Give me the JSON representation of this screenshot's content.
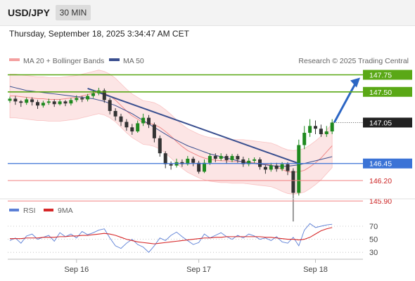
{
  "header": {
    "symbol": "USD/JPY",
    "timeframe": "30 MIN",
    "datetime": "Thursday, September 18, 2025 3:34:47 AM CET"
  },
  "legend": {
    "ma20": "MA 20 + Bollinger Bands",
    "ma50": "MA 50",
    "credit": "Research © 2025 Trading Central"
  },
  "rsi_legend": {
    "rsi": "RSI",
    "ma": "9MA"
  },
  "colors": {
    "up": "#1f8a1f",
    "down": "#333333",
    "ma20": "#f08a8a",
    "ma50": "#3a4f8f",
    "resistance": "#5aa816",
    "support": "#f08080",
    "pivot": "#3b73d6",
    "arrow": "#2c66c4"
  },
  "chart_data": [
    {
      "type": "candlestick",
      "title": "USD/JPY",
      "x_ticks": [
        "Sep 16",
        "Sep 17",
        "Sep 18"
      ],
      "last_price": "147.05",
      "levels": [
        {
          "label": "147.75",
          "kind": "resistance"
        },
        {
          "label": "147.50",
          "kind": "resistance"
        },
        {
          "label": "147.05",
          "kind": "last"
        },
        {
          "label": "146.45",
          "kind": "pivot"
        },
        {
          "label": "146.20",
          "kind": "support"
        },
        {
          "label": "145.90",
          "kind": "support"
        }
      ],
      "trendline": {
        "from": 147.55,
        "to": 146.45
      },
      "series": [
        {
          "name": "MA 20 + Bollinger Bands",
          "values": [
            147.44,
            147.44,
            147.43,
            147.42,
            147.41,
            147.4,
            147.4,
            147.39,
            147.39,
            147.39,
            147.4,
            147.41,
            147.42,
            147.44,
            147.46,
            147.48,
            147.5,
            147.48,
            147.44,
            147.38,
            147.3,
            147.22,
            147.15,
            147.1,
            147.05,
            147.04,
            147.02,
            146.98,
            146.92,
            146.85,
            146.77,
            146.7,
            146.64,
            146.6,
            146.56,
            146.53,
            146.51,
            146.5,
            146.49,
            146.49,
            146.48,
            146.48,
            146.48,
            146.47,
            146.46,
            146.45,
            146.44,
            146.43,
            146.4,
            146.36,
            146.33,
            146.32,
            146.33,
            146.35,
            146.4,
            146.46,
            146.53,
            146.62,
            146.71
          ]
        },
        {
          "name": "MA 50",
          "values": [
            147.58,
            147.56,
            147.54,
            147.52,
            147.51,
            147.5,
            147.49,
            147.48,
            147.47,
            147.46,
            147.45,
            147.44,
            147.43,
            147.42,
            147.41,
            147.4,
            147.38,
            147.36,
            147.33,
            147.3,
            147.26,
            147.22,
            147.18,
            147.13,
            147.08,
            147.03,
            146.98,
            146.93,
            146.88,
            146.83,
            146.79,
            146.75,
            146.71,
            146.68,
            146.65,
            146.62,
            146.59,
            146.57,
            146.55,
            146.53,
            146.51,
            146.49,
            146.47,
            146.46,
            146.45,
            146.44,
            146.43,
            146.42,
            146.41,
            146.41,
            146.41,
            146.42,
            146.43,
            146.45,
            146.47,
            146.49,
            146.51,
            146.53,
            146.55
          ]
        }
      ],
      "candles": [
        [
          147.37,
          147.4,
          147.34,
          147.43
        ],
        [
          147.4,
          147.36,
          147.31,
          147.44
        ],
        [
          147.36,
          147.34,
          147.28,
          147.38
        ],
        [
          147.34,
          147.39,
          147.31,
          147.42
        ],
        [
          147.39,
          147.35,
          147.3,
          147.42
        ],
        [
          147.35,
          147.3,
          147.25,
          147.38
        ],
        [
          147.3,
          147.34,
          147.27,
          147.37
        ],
        [
          147.34,
          147.36,
          147.31,
          147.4
        ],
        [
          147.36,
          147.32,
          147.28,
          147.39
        ],
        [
          147.32,
          147.36,
          147.3,
          147.39
        ],
        [
          147.36,
          147.33,
          147.29,
          147.38
        ],
        [
          147.33,
          147.38,
          147.3,
          147.41
        ],
        [
          147.38,
          147.41,
          147.35,
          147.45
        ],
        [
          147.41,
          147.39,
          147.35,
          147.44
        ],
        [
          147.39,
          147.44,
          147.36,
          147.47
        ],
        [
          147.44,
          147.48,
          147.41,
          147.53
        ],
        [
          147.48,
          147.52,
          147.45,
          147.56
        ],
        [
          147.52,
          147.38,
          147.34,
          147.55
        ],
        [
          147.38,
          147.22,
          147.17,
          147.41
        ],
        [
          147.22,
          147.14,
          147.08,
          147.26
        ],
        [
          147.14,
          147.06,
          147.0,
          147.18
        ],
        [
          147.06,
          146.98,
          146.93,
          147.1
        ],
        [
          146.98,
          146.92,
          146.87,
          147.03
        ],
        [
          146.92,
          147.04,
          146.9,
          147.08
        ],
        [
          147.04,
          147.12,
          147.0,
          147.18
        ],
        [
          147.12,
          147.02,
          146.97,
          147.16
        ],
        [
          147.02,
          146.82,
          146.76,
          147.05
        ],
        [
          146.82,
          146.6,
          146.55,
          146.86
        ],
        [
          146.6,
          146.44,
          146.38,
          146.63
        ],
        [
          146.44,
          146.42,
          146.36,
          146.48
        ],
        [
          146.42,
          146.47,
          146.39,
          146.52
        ],
        [
          146.47,
          146.44,
          146.4,
          146.51
        ],
        [
          146.44,
          146.52,
          146.42,
          146.56
        ],
        [
          146.52,
          146.46,
          146.41,
          146.55
        ],
        [
          146.46,
          146.33,
          146.3,
          146.49
        ],
        [
          146.33,
          146.46,
          146.31,
          146.51
        ],
        [
          146.46,
          146.56,
          146.43,
          146.6
        ],
        [
          146.56,
          146.52,
          146.47,
          146.6
        ],
        [
          146.52,
          146.56,
          146.49,
          146.6
        ],
        [
          146.56,
          146.5,
          146.45,
          146.59
        ],
        [
          146.5,
          146.56,
          146.47,
          146.59
        ],
        [
          146.56,
          146.51,
          146.46,
          146.59
        ],
        [
          146.51,
          146.44,
          146.4,
          146.55
        ],
        [
          146.44,
          146.49,
          146.41,
          146.53
        ],
        [
          146.49,
          146.51,
          146.45,
          146.54
        ],
        [
          146.51,
          146.4,
          146.36,
          146.54
        ],
        [
          146.4,
          146.36,
          146.3,
          146.43
        ],
        [
          146.36,
          146.42,
          146.33,
          146.46
        ],
        [
          146.42,
          146.37,
          146.33,
          146.46
        ],
        [
          146.37,
          146.44,
          146.34,
          146.47
        ],
        [
          146.44,
          146.34,
          146.28,
          146.47
        ],
        [
          146.34,
          146.02,
          145.6,
          146.38
        ],
        [
          146.02,
          146.72,
          145.98,
          146.8
        ],
        [
          146.72,
          146.9,
          146.66,
          147.0
        ],
        [
          146.9,
          147.0,
          146.84,
          147.1
        ],
        [
          147.0,
          146.96,
          146.88,
          147.08
        ],
        [
          146.96,
          146.88,
          146.84,
          147.02
        ],
        [
          146.88,
          146.92,
          146.84,
          147.0
        ],
        [
          146.92,
          147.05,
          146.88,
          147.1
        ]
      ]
    },
    {
      "type": "line",
      "title": "RSI",
      "y_ticks": [
        "70",
        "50",
        "30"
      ],
      "series": [
        {
          "name": "RSI",
          "values": [
            48,
            52,
            44,
            55,
            58,
            50,
            53,
            56,
            47,
            60,
            54,
            58,
            52,
            62,
            57,
            60,
            64,
            66,
            52,
            40,
            36,
            44,
            50,
            42,
            38,
            30,
            40,
            52,
            48,
            56,
            61,
            54,
            48,
            42,
            45,
            58,
            52,
            56,
            60,
            54,
            50,
            56,
            52,
            58,
            55,
            50,
            52,
            48,
            54,
            46,
            44,
            53,
            40,
            64,
            74,
            68,
            70,
            72,
            73
          ]
        },
        {
          "name": "9MA",
          "values": [
            51,
            51,
            51,
            52,
            52,
            52,
            53,
            53,
            53,
            54,
            54,
            55,
            55,
            56,
            56,
            57,
            58,
            59,
            58,
            56,
            53,
            50,
            48,
            46,
            45,
            44,
            43,
            44,
            45,
            46,
            47,
            48,
            49,
            50,
            51,
            52,
            52,
            53,
            53,
            54,
            54,
            54,
            54,
            54,
            54,
            54,
            53,
            53,
            52,
            51,
            50,
            50,
            49,
            50,
            53,
            58,
            63,
            66,
            68
          ]
        }
      ]
    }
  ]
}
